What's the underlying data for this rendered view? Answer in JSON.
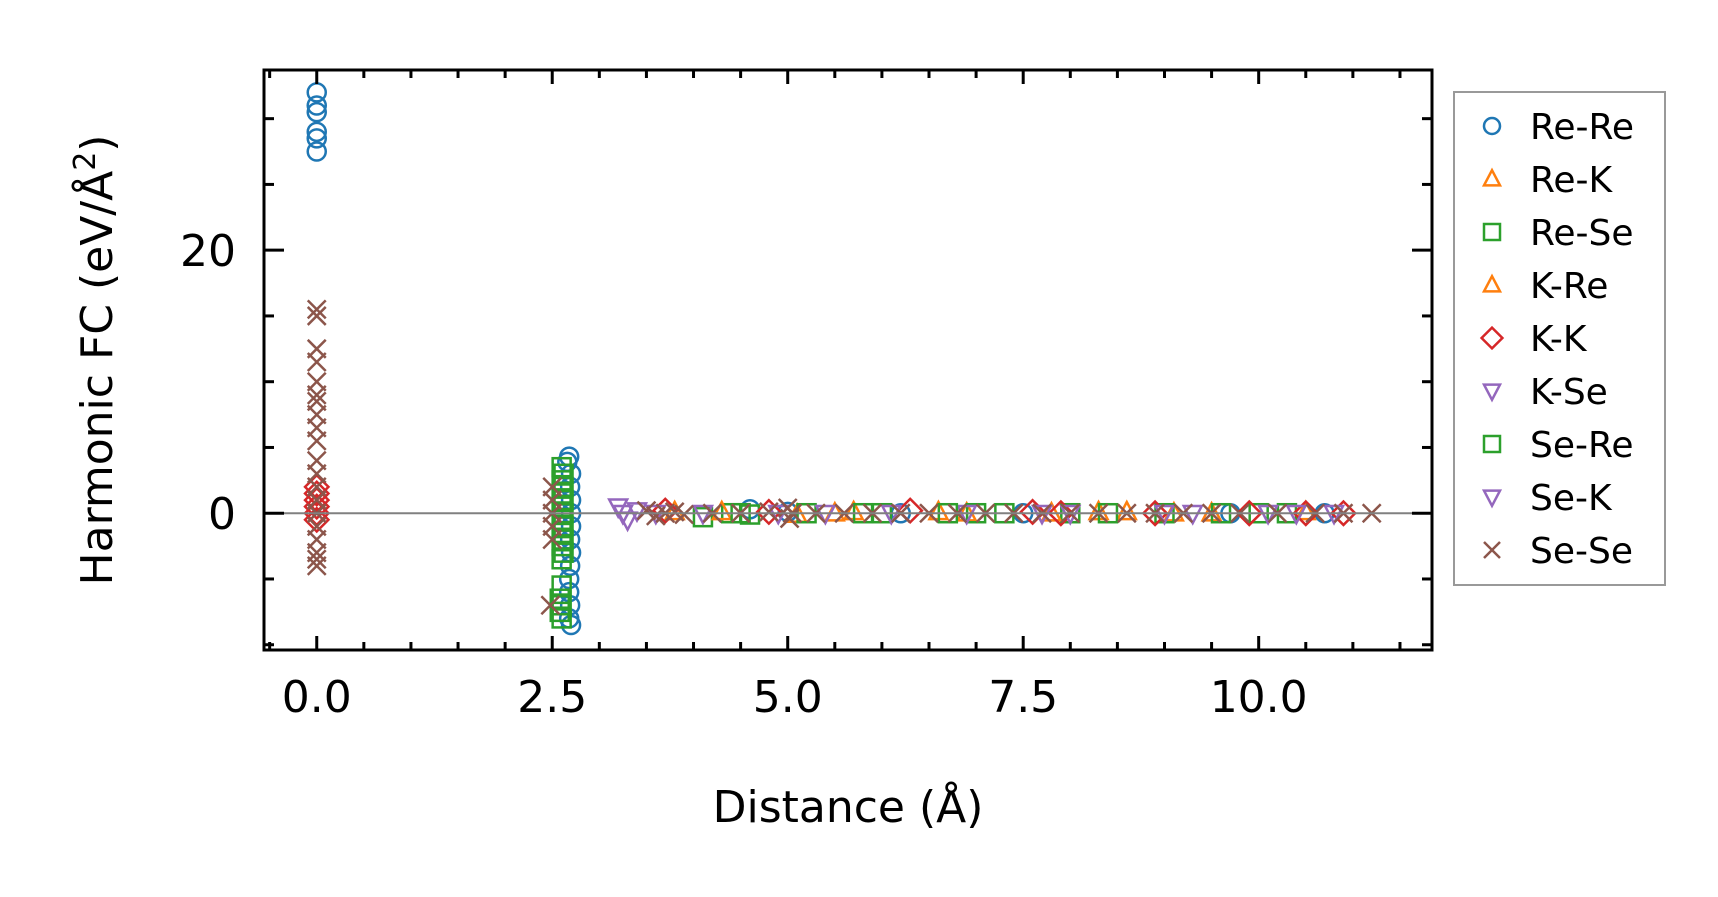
{
  "chart_data": {
    "type": "scatter",
    "title": "",
    "xlabel": "Distance (Å)",
    "ylabel": "Harmonic FC (eV/Å²)",
    "ylabel_parts": {
      "main": "Harmonic FC (eV/Å",
      "sup": "2",
      "close": ")"
    },
    "xlim": [
      -0.56,
      11.84
    ],
    "ylim": [
      -10.4,
      33.7
    ],
    "xticks": [
      0.0,
      2.5,
      5.0,
      7.5,
      10.0
    ],
    "xtick_labels": [
      "0.0",
      "2.5",
      "5.0",
      "7.5",
      "10.0"
    ],
    "yticks": [
      0,
      20
    ],
    "ytick_labels": [
      "0",
      "20"
    ],
    "x_minor_step": 0.5,
    "y_minor_step": 5,
    "zero_line": true,
    "grid": false,
    "legend_position": "outside-right",
    "series": [
      {
        "name": "Re-Re",
        "marker": "circle",
        "color": "#1f77b4",
        "points": [
          [
            0,
            32
          ],
          [
            0,
            31
          ],
          [
            0,
            30.5
          ],
          [
            0,
            29
          ],
          [
            0,
            28.5
          ],
          [
            0,
            27.5
          ],
          [
            2.68,
            4.3
          ],
          [
            2.66,
            3.9
          ],
          [
            2.7,
            3
          ],
          [
            2.69,
            2
          ],
          [
            2.7,
            1
          ],
          [
            2.7,
            0
          ],
          [
            2.7,
            -1
          ],
          [
            2.69,
            -2
          ],
          [
            2.7,
            -3
          ],
          [
            2.69,
            -4
          ],
          [
            2.68,
            -5
          ],
          [
            2.68,
            -6
          ],
          [
            2.69,
            -7
          ],
          [
            2.68,
            -8
          ],
          [
            2.7,
            -8.5
          ],
          [
            4.6,
            0.3
          ],
          [
            5.0,
            0.1
          ],
          [
            6.2,
            0
          ],
          [
            7.5,
            0
          ],
          [
            9.7,
            0
          ],
          [
            10.7,
            0
          ]
        ]
      },
      {
        "name": "Re-K",
        "marker": "triangle-up",
        "color": "#ff7f0e",
        "points": [
          [
            3.8,
            0.1
          ],
          [
            5.1,
            -0.1
          ],
          [
            5.7,
            0.1
          ],
          [
            6.9,
            0
          ],
          [
            8.3,
            0.1
          ],
          [
            9.1,
            0
          ],
          [
            10.5,
            0.1
          ]
        ]
      },
      {
        "name": "Re-Se",
        "marker": "square",
        "color": "#2ca02c",
        "points": [
          [
            2.6,
            3.5
          ],
          [
            2.62,
            3
          ],
          [
            2.6,
            2.5
          ],
          [
            2.62,
            2
          ],
          [
            2.6,
            1.5
          ],
          [
            2.62,
            1
          ],
          [
            2.6,
            0.5
          ],
          [
            2.62,
            0
          ],
          [
            2.6,
            -0.5
          ],
          [
            2.62,
            -1
          ],
          [
            2.6,
            -1.5
          ],
          [
            2.62,
            -2
          ],
          [
            2.6,
            -2.5
          ],
          [
            2.62,
            -3
          ],
          [
            2.6,
            -3.5
          ],
          [
            2.6,
            -5.5
          ],
          [
            2.58,
            -6.5
          ],
          [
            2.6,
            -7
          ],
          [
            2.58,
            -7.5
          ],
          [
            2.6,
            -8
          ],
          [
            4.1,
            -0.3
          ],
          [
            4.4,
            0
          ],
          [
            4.6,
            -0.1
          ],
          [
            5.2,
            0
          ],
          [
            6.0,
            0
          ],
          [
            7.0,
            0
          ],
          [
            7.3,
            0
          ],
          [
            8.0,
            0
          ],
          [
            9.0,
            0
          ],
          [
            10.0,
            0
          ],
          [
            10.3,
            0
          ]
        ]
      },
      {
        "name": "K-Re",
        "marker": "triangle-up",
        "color": "#ff7f0e",
        "points": [
          [
            4.3,
            0.1
          ],
          [
            5.5,
            0
          ],
          [
            6.6,
            0.1
          ],
          [
            7.8,
            0
          ],
          [
            8.6,
            0.1
          ],
          [
            9.5,
            0
          ]
        ]
      },
      {
        "name": "K-K",
        "marker": "diamond",
        "color": "#d62728",
        "points": [
          [
            0,
            2
          ],
          [
            0,
            1.5
          ],
          [
            0,
            1
          ],
          [
            0,
            0.5
          ],
          [
            0,
            0
          ],
          [
            0,
            -0.5
          ],
          [
            3.7,
            0.2
          ],
          [
            4.8,
            0.1
          ],
          [
            6.3,
            0.2
          ],
          [
            7.6,
            0.1
          ],
          [
            7.9,
            0
          ],
          [
            8.9,
            0
          ],
          [
            9.9,
            0
          ],
          [
            10.5,
            0
          ],
          [
            10.9,
            0
          ]
        ]
      },
      {
        "name": "K-Se",
        "marker": "triangle-down",
        "color": "#9467bd",
        "points": [
          [
            3.2,
            0.5
          ],
          [
            3.25,
            0
          ],
          [
            3.3,
            -0.5
          ],
          [
            3.4,
            0.2
          ],
          [
            4.1,
            0
          ],
          [
            5.4,
            0
          ],
          [
            6.9,
            0
          ],
          [
            8.0,
            0
          ],
          [
            9.3,
            0
          ],
          [
            10.1,
            0
          ],
          [
            10.8,
            0
          ]
        ]
      },
      {
        "name": "Se-Re",
        "marker": "square",
        "color": "#2ca02c",
        "points": [
          [
            4.5,
            0
          ],
          [
            5.8,
            0
          ],
          [
            6.7,
            0
          ],
          [
            8.4,
            0
          ],
          [
            9.6,
            0
          ]
        ]
      },
      {
        "name": "Se-K",
        "marker": "triangle-down",
        "color": "#9467bd",
        "points": [
          [
            3.6,
            0
          ],
          [
            4.9,
            0
          ],
          [
            6.1,
            0
          ],
          [
            7.7,
            0
          ],
          [
            9.0,
            0
          ],
          [
            10.4,
            0
          ]
        ]
      },
      {
        "name": "Se-Se",
        "marker": "x",
        "color": "#8c564b",
        "points": [
          [
            0,
            15.5
          ],
          [
            0,
            15
          ],
          [
            0,
            12.5
          ],
          [
            0,
            11.5
          ],
          [
            0,
            10
          ],
          [
            0,
            9
          ],
          [
            0,
            8.5
          ],
          [
            0,
            7.5
          ],
          [
            0,
            6.5
          ],
          [
            0,
            5.5
          ],
          [
            0,
            4
          ],
          [
            0,
            3
          ],
          [
            0,
            2
          ],
          [
            0,
            1
          ],
          [
            0,
            0
          ],
          [
            0,
            -1
          ],
          [
            0,
            -2
          ],
          [
            0,
            -3
          ],
          [
            0,
            -3.5
          ],
          [
            0,
            -4
          ],
          [
            2.5,
            2
          ],
          [
            2.5,
            1
          ],
          [
            2.5,
            0
          ],
          [
            2.5,
            -1
          ],
          [
            2.5,
            -2
          ],
          [
            2.48,
            -7
          ],
          [
            3.5,
            0.2
          ],
          [
            3.6,
            -0.2
          ],
          [
            3.7,
            0
          ],
          [
            3.8,
            0.1
          ],
          [
            3.9,
            -0.1
          ],
          [
            4.2,
            0
          ],
          [
            4.5,
            0
          ],
          [
            4.8,
            0.1
          ],
          [
            5.0,
            0.4
          ],
          [
            5.02,
            -0.4
          ],
          [
            5.05,
            0
          ],
          [
            5.3,
            0
          ],
          [
            5.6,
            0
          ],
          [
            5.9,
            0
          ],
          [
            6.2,
            0
          ],
          [
            6.5,
            0
          ],
          [
            6.8,
            0
          ],
          [
            7.1,
            0
          ],
          [
            7.4,
            0
          ],
          [
            7.7,
            0
          ],
          [
            8.0,
            0
          ],
          [
            8.3,
            0
          ],
          [
            8.6,
            0
          ],
          [
            8.9,
            0
          ],
          [
            9.2,
            0
          ],
          [
            9.5,
            0
          ],
          [
            9.8,
            0
          ],
          [
            10.2,
            0
          ],
          [
            10.6,
            0
          ],
          [
            10.9,
            0
          ],
          [
            11.2,
            0
          ]
        ]
      }
    ]
  }
}
